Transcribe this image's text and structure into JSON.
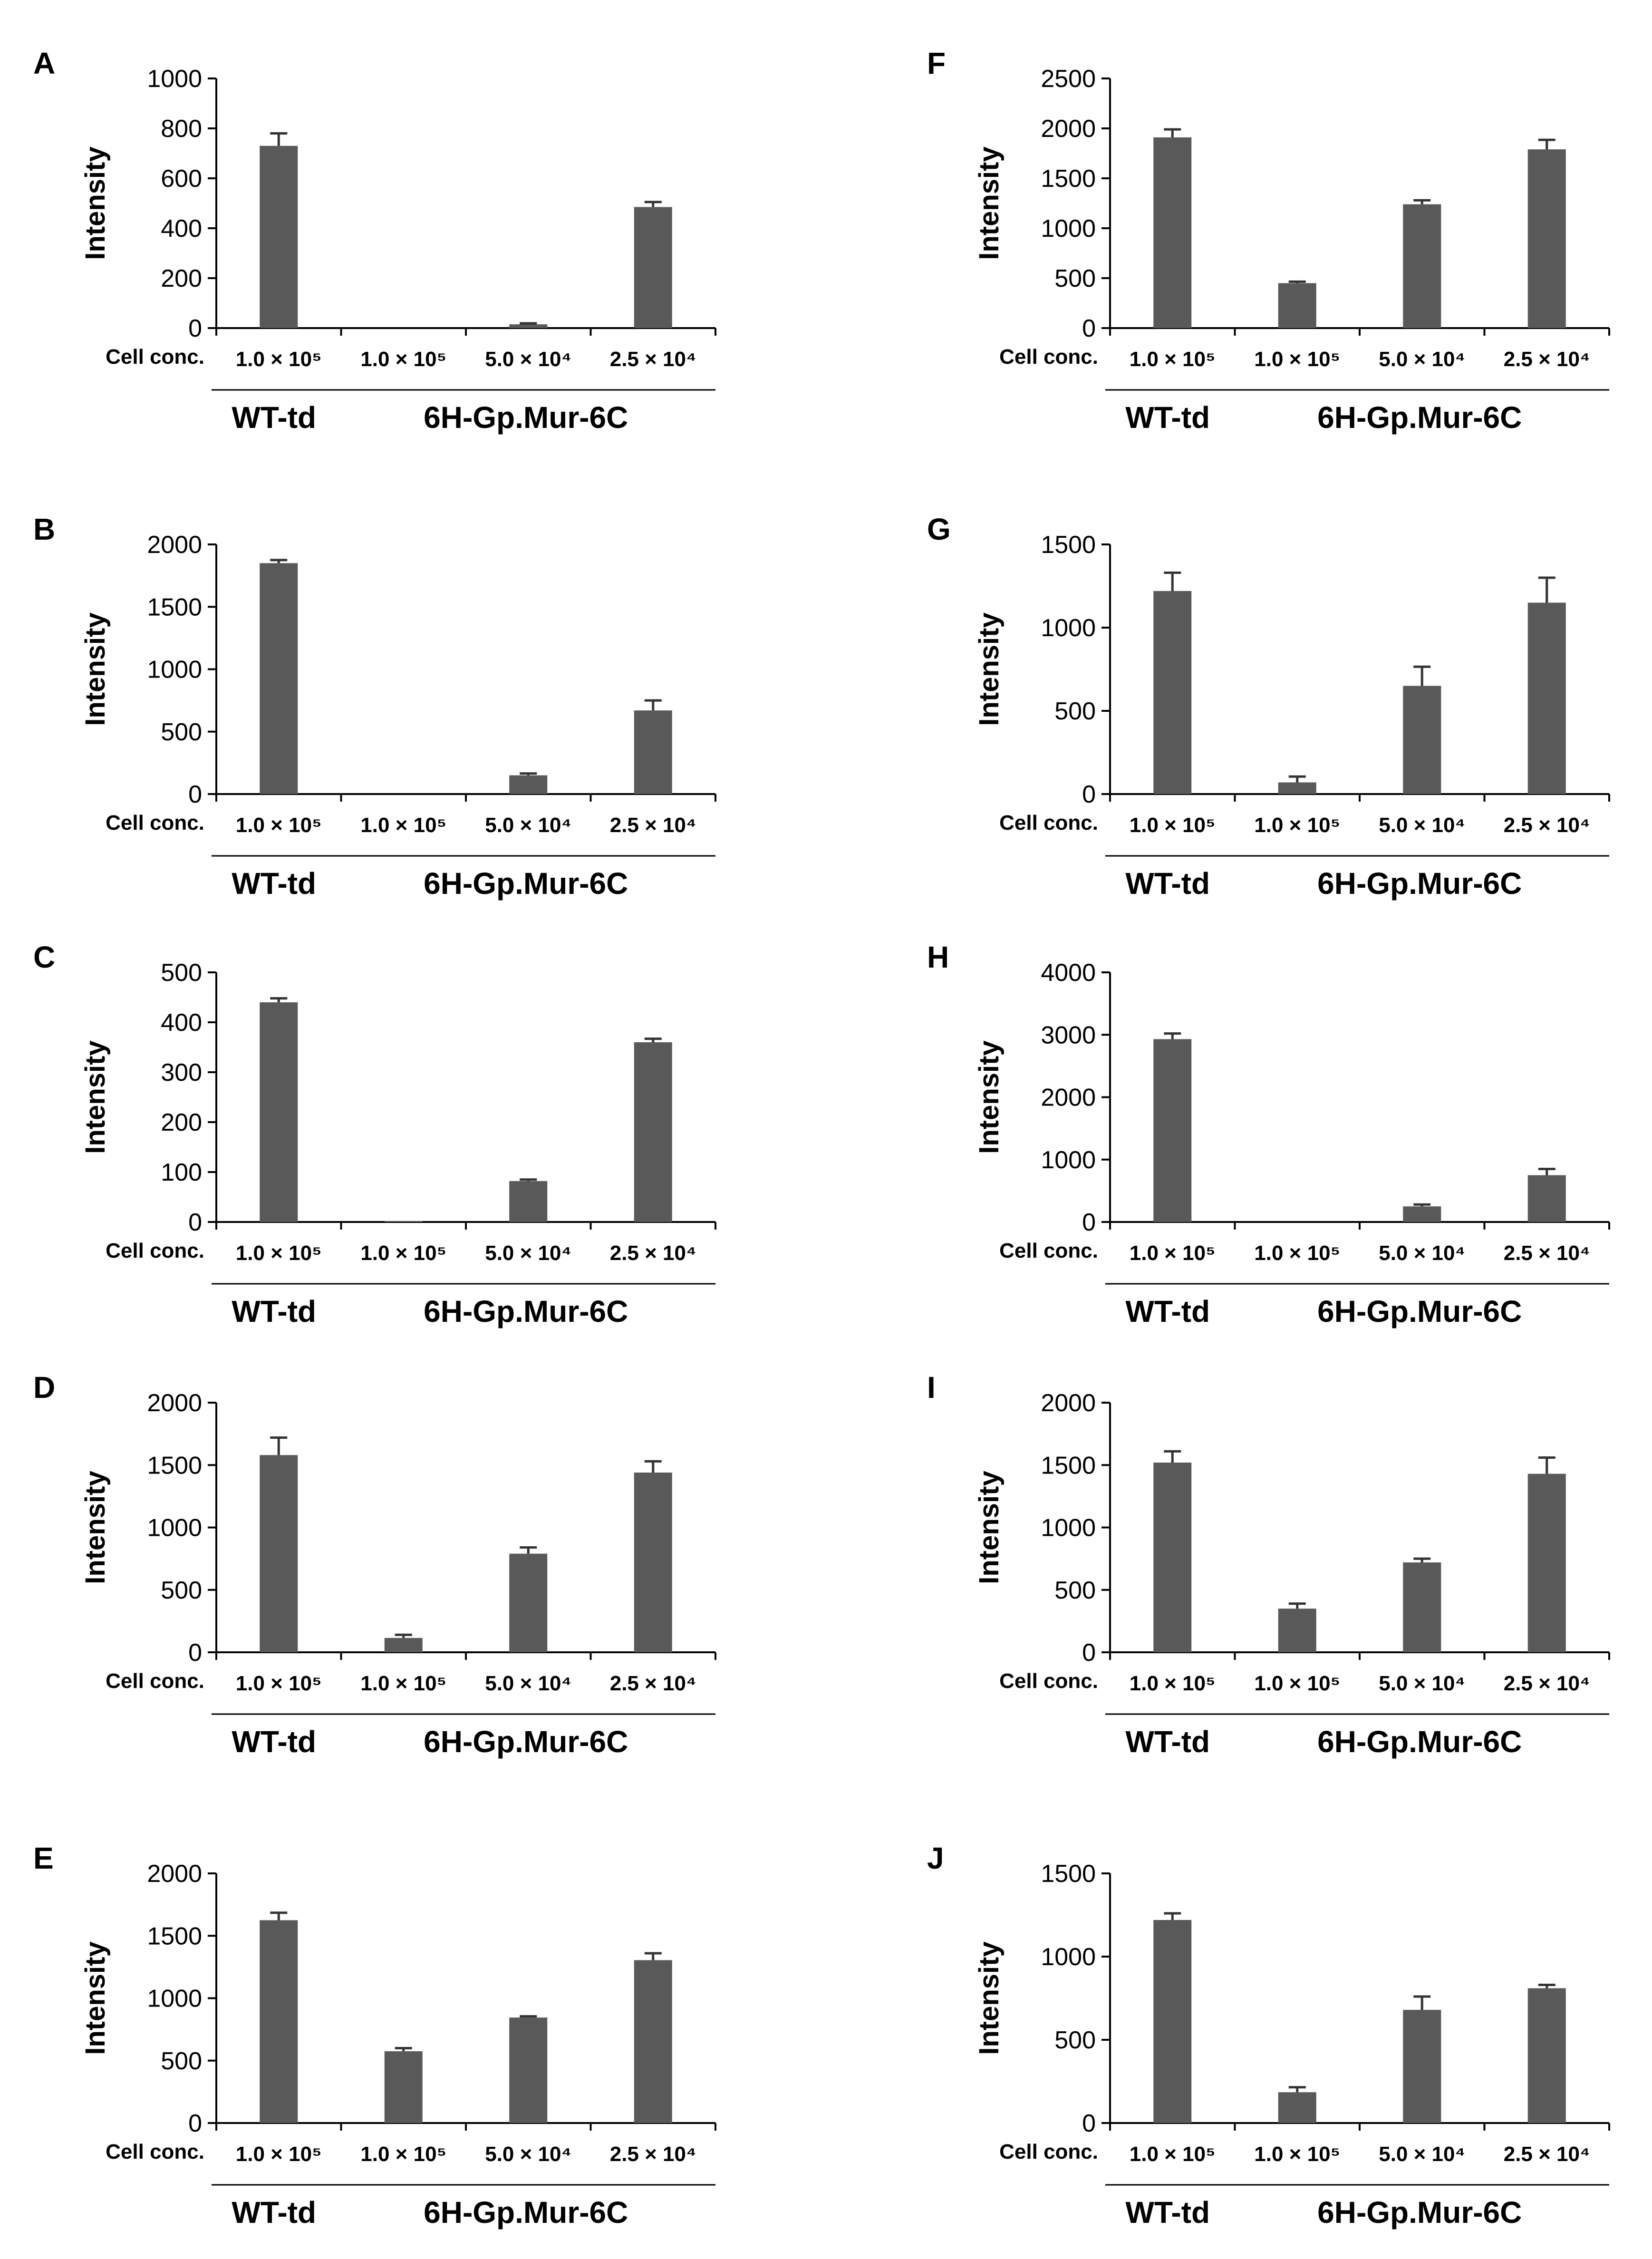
{
  "colors": {
    "bar": "#595959",
    "axis": "#000000",
    "error": "#333333"
  },
  "shared": {
    "ylabel": "Intensity",
    "row_label": "Cell conc.",
    "categories": [
      "1.0 × 10⁵",
      "1.0 × 10⁵",
      "5.0 × 10⁴",
      "2.5 × 10⁴"
    ],
    "groups": [
      {
        "name": "WT-td",
        "span": [
          0,
          0
        ]
      },
      {
        "name": "6H-Gp.Mur-6C",
        "span": [
          1,
          3
        ]
      }
    ]
  },
  "chart_data": [
    {
      "panel": "A",
      "type": "bar",
      "ylim": [
        0,
        1000
      ],
      "yticks": [
        0,
        200,
        400,
        600,
        800,
        1000
      ],
      "ylabel": "Intensity",
      "xlabel": "Cell conc.",
      "categories": [
        "1.0 × 10⁵",
        "1.0 × 10⁵",
        "5.0 × 10⁴",
        "2.5 × 10⁴"
      ],
      "values": [
        730,
        0,
        15,
        485
      ],
      "errors": [
        50,
        0,
        4,
        20
      ]
    },
    {
      "panel": "B",
      "type": "bar",
      "ylim": [
        0,
        2000
      ],
      "yticks": [
        0,
        500,
        1000,
        1500,
        2000
      ],
      "ylabel": "Intensity",
      "xlabel": "Cell conc.",
      "categories": [
        "1.0 × 10⁵",
        "1.0 × 10⁵",
        "5.0 × 10⁴",
        "2.5 × 10⁴"
      ],
      "values": [
        1850,
        0,
        150,
        670
      ],
      "errors": [
        25,
        0,
        15,
        80
      ]
    },
    {
      "panel": "C",
      "type": "bar",
      "ylim": [
        0,
        500
      ],
      "yticks": [
        0,
        100,
        200,
        300,
        400,
        500
      ],
      "ylabel": "Intensity",
      "xlabel": "Cell conc.",
      "categories": [
        "1.0 × 10⁵",
        "1.0 × 10⁵",
        "5.0 × 10⁴",
        "2.5 × 10⁴"
      ],
      "values": [
        440,
        2,
        82,
        360
      ],
      "errors": [
        8,
        0,
        3,
        7
      ]
    },
    {
      "panel": "D",
      "type": "bar",
      "ylim": [
        0,
        2000
      ],
      "yticks": [
        0,
        500,
        1000,
        1500,
        2000
      ],
      "ylabel": "Intensity",
      "xlabel": "Cell conc.",
      "categories": [
        "1.0 × 10⁵",
        "1.0 × 10⁵",
        "5.0 × 10⁴",
        "2.5 × 10⁴"
      ],
      "values": [
        1580,
        115,
        790,
        1440
      ],
      "errors": [
        140,
        25,
        50,
        90
      ]
    },
    {
      "panel": "E",
      "type": "bar",
      "ylim": [
        0,
        2000
      ],
      "yticks": [
        0,
        500,
        1000,
        1500,
        2000
      ],
      "ylabel": "Intensity",
      "xlabel": "Cell conc.",
      "categories": [
        "1.0 × 10⁵",
        "1.0 × 10⁵",
        "5.0 × 10⁴",
        "2.5 × 10⁴"
      ],
      "values": [
        1625,
        575,
        845,
        1305
      ],
      "errors": [
        60,
        25,
        10,
        55
      ]
    },
    {
      "panel": "F",
      "type": "bar",
      "ylim": [
        0,
        2500
      ],
      "yticks": [
        0,
        500,
        1000,
        1500,
        2000,
        2500
      ],
      "ylabel": "Intensity",
      "xlabel": "Cell conc.",
      "categories": [
        "1.0 × 10⁵",
        "1.0 × 10⁵",
        "5.0 × 10⁴",
        "2.5 × 10⁴"
      ],
      "values": [
        1910,
        450,
        1240,
        1790
      ],
      "errors": [
        80,
        15,
        40,
        95
      ]
    },
    {
      "panel": "G",
      "type": "bar",
      "ylim": [
        0,
        1500
      ],
      "yticks": [
        0,
        500,
        1000,
        1500
      ],
      "ylabel": "Intensity",
      "xlabel": "Cell conc.",
      "categories": [
        "1.0 × 10⁵",
        "1.0 × 10⁵",
        "5.0 × 10⁴",
        "2.5 × 10⁴"
      ],
      "values": [
        1220,
        70,
        650,
        1150
      ],
      "errors": [
        110,
        35,
        115,
        150
      ]
    },
    {
      "panel": "H",
      "type": "bar",
      "ylim": [
        0,
        4000
      ],
      "yticks": [
        0,
        1000,
        2000,
        3000,
        4000
      ],
      "ylabel": "Intensity",
      "xlabel": "Cell conc.",
      "categories": [
        "1.0 × 10⁵",
        "1.0 × 10⁵",
        "5.0 × 10⁴",
        "2.5 × 10⁴"
      ],
      "values": [
        2930,
        0,
        250,
        750
      ],
      "errors": [
        90,
        0,
        30,
        100
      ]
    },
    {
      "panel": "I",
      "type": "bar",
      "ylim": [
        0,
        2000
      ],
      "yticks": [
        0,
        500,
        1000,
        1500,
        2000
      ],
      "ylabel": "Intensity",
      "xlabel": "Cell conc.",
      "categories": [
        "1.0 × 10⁵",
        "1.0 × 10⁵",
        "5.0 × 10⁴",
        "2.5 × 10⁴"
      ],
      "values": [
        1520,
        350,
        720,
        1430
      ],
      "errors": [
        90,
        40,
        30,
        130
      ]
    },
    {
      "panel": "J",
      "type": "bar",
      "ylim": [
        0,
        1500
      ],
      "yticks": [
        0,
        500,
        1000,
        1500
      ],
      "ylabel": "Intensity",
      "xlabel": "Cell conc.",
      "categories": [
        "1.0 × 10⁵",
        "1.0 × 10⁵",
        "5.0 × 10⁴",
        "2.5 × 10⁴"
      ],
      "values": [
        1220,
        185,
        680,
        810
      ],
      "errors": [
        40,
        30,
        80,
        20
      ]
    }
  ]
}
